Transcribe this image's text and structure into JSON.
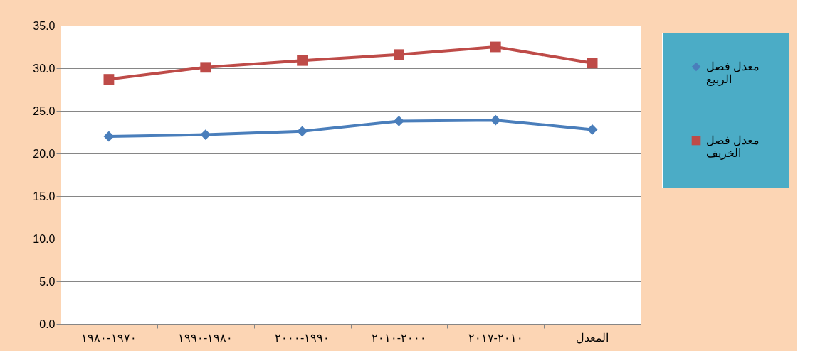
{
  "chart_data": {
    "type": "line",
    "categories": [
      "١٩٧٠-١٩٨٠",
      "١٩٨٠-١٩٩٠",
      "١٩٩٠-٢٠٠٠",
      "٢٠٠٠-٢٠١٠",
      "٢٠١٠-٢٠١٧",
      "المعدل"
    ],
    "series": [
      {
        "name": "معدل فصل الربيع",
        "color": "#4a7ebb",
        "marker": "diamond",
        "values": [
          22.0,
          22.2,
          22.6,
          23.8,
          23.9,
          22.8
        ]
      },
      {
        "name": "معدل فصل الخريف",
        "color": "#be4b48",
        "marker": "square",
        "values": [
          28.7,
          30.1,
          30.9,
          31.6,
          32.5,
          30.6
        ]
      }
    ],
    "ylim": [
      0,
      35
    ],
    "yticks": [
      {
        "value": 0,
        "label": "0.0"
      },
      {
        "value": 5,
        "label": "5.0"
      },
      {
        "value": 10,
        "label": "10.0"
      },
      {
        "value": 15,
        "label": "15.0"
      },
      {
        "value": 20,
        "label": "20.0"
      },
      {
        "value": 25,
        "label": "25.0"
      },
      {
        "value": 30,
        "label": "30.0"
      },
      {
        "value": 35,
        "label": "35.0"
      }
    ],
    "grid": "y",
    "legend": "right"
  }
}
